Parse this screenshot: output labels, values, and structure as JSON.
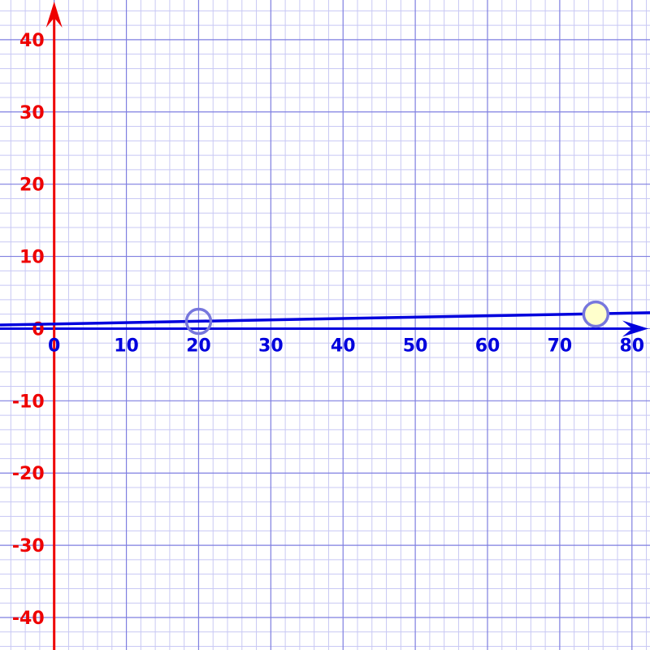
{
  "chart_data": {
    "type": "line",
    "title": "",
    "xlabel": "",
    "ylabel": "",
    "xlim": [
      -7.5,
      82.5
    ],
    "ylim": [
      -44.5,
      45.5
    ],
    "grid": true,
    "x_ticks": [
      "0",
      "10",
      "20",
      "30",
      "40",
      "50",
      "60",
      "70",
      "80"
    ],
    "y_ticks": [
      "40",
      "30",
      "20",
      "10",
      "0",
      "-10",
      "-20",
      "-30",
      "-40"
    ],
    "line": {
      "points": [
        [
          -7.5,
          0.5
        ],
        [
          82.5,
          2.2
        ]
      ]
    },
    "points": [
      {
        "x": 20,
        "y": 1.0,
        "fill": "none"
      },
      {
        "x": 75,
        "y": 2.0,
        "fill": "#ffffcc"
      }
    ],
    "colors": {
      "x_axis": "#0000dd",
      "y_axis": "#ee0000",
      "grid_major": "#7f7fe0",
      "grid_minor": "#c8c8f4",
      "line": "#0000dd",
      "point_stroke": "#7777dd"
    }
  }
}
